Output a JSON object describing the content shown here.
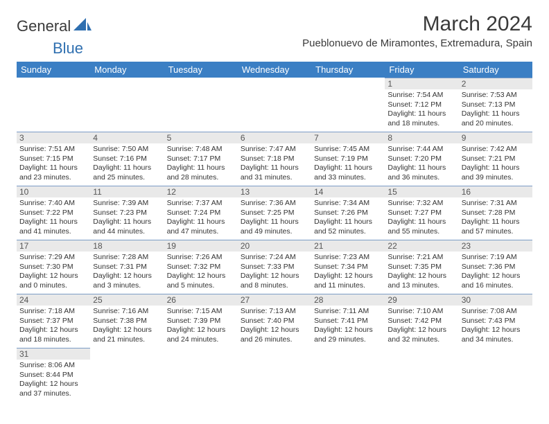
{
  "brand": {
    "part1": "General",
    "part2": "Blue",
    "color1": "#4a4a4a",
    "color2": "#2f6fb0"
  },
  "title": "March 2024",
  "location": "Pueblonuevo de Miramontes, Extremadura, Spain",
  "colors": {
    "header_bg": "#3b7fc4",
    "header_text": "#ffffff",
    "daynum_bg": "#e9e9e9",
    "cell_border": "#7a9cc6"
  },
  "day_headers": [
    "Sunday",
    "Monday",
    "Tuesday",
    "Wednesday",
    "Thursday",
    "Friday",
    "Saturday"
  ],
  "weeks": [
    [
      null,
      null,
      null,
      null,
      null,
      {
        "n": "1",
        "sr": "Sunrise: 7:54 AM",
        "ss": "Sunset: 7:12 PM",
        "d1": "Daylight: 11 hours",
        "d2": "and 18 minutes."
      },
      {
        "n": "2",
        "sr": "Sunrise: 7:53 AM",
        "ss": "Sunset: 7:13 PM",
        "d1": "Daylight: 11 hours",
        "d2": "and 20 minutes."
      }
    ],
    [
      {
        "n": "3",
        "sr": "Sunrise: 7:51 AM",
        "ss": "Sunset: 7:15 PM",
        "d1": "Daylight: 11 hours",
        "d2": "and 23 minutes."
      },
      {
        "n": "4",
        "sr": "Sunrise: 7:50 AM",
        "ss": "Sunset: 7:16 PM",
        "d1": "Daylight: 11 hours",
        "d2": "and 25 minutes."
      },
      {
        "n": "5",
        "sr": "Sunrise: 7:48 AM",
        "ss": "Sunset: 7:17 PM",
        "d1": "Daylight: 11 hours",
        "d2": "and 28 minutes."
      },
      {
        "n": "6",
        "sr": "Sunrise: 7:47 AM",
        "ss": "Sunset: 7:18 PM",
        "d1": "Daylight: 11 hours",
        "d2": "and 31 minutes."
      },
      {
        "n": "7",
        "sr": "Sunrise: 7:45 AM",
        "ss": "Sunset: 7:19 PM",
        "d1": "Daylight: 11 hours",
        "d2": "and 33 minutes."
      },
      {
        "n": "8",
        "sr": "Sunrise: 7:44 AM",
        "ss": "Sunset: 7:20 PM",
        "d1": "Daylight: 11 hours",
        "d2": "and 36 minutes."
      },
      {
        "n": "9",
        "sr": "Sunrise: 7:42 AM",
        "ss": "Sunset: 7:21 PM",
        "d1": "Daylight: 11 hours",
        "d2": "and 39 minutes."
      }
    ],
    [
      {
        "n": "10",
        "sr": "Sunrise: 7:40 AM",
        "ss": "Sunset: 7:22 PM",
        "d1": "Daylight: 11 hours",
        "d2": "and 41 minutes."
      },
      {
        "n": "11",
        "sr": "Sunrise: 7:39 AM",
        "ss": "Sunset: 7:23 PM",
        "d1": "Daylight: 11 hours",
        "d2": "and 44 minutes."
      },
      {
        "n": "12",
        "sr": "Sunrise: 7:37 AM",
        "ss": "Sunset: 7:24 PM",
        "d1": "Daylight: 11 hours",
        "d2": "and 47 minutes."
      },
      {
        "n": "13",
        "sr": "Sunrise: 7:36 AM",
        "ss": "Sunset: 7:25 PM",
        "d1": "Daylight: 11 hours",
        "d2": "and 49 minutes."
      },
      {
        "n": "14",
        "sr": "Sunrise: 7:34 AM",
        "ss": "Sunset: 7:26 PM",
        "d1": "Daylight: 11 hours",
        "d2": "and 52 minutes."
      },
      {
        "n": "15",
        "sr": "Sunrise: 7:32 AM",
        "ss": "Sunset: 7:27 PM",
        "d1": "Daylight: 11 hours",
        "d2": "and 55 minutes."
      },
      {
        "n": "16",
        "sr": "Sunrise: 7:31 AM",
        "ss": "Sunset: 7:28 PM",
        "d1": "Daylight: 11 hours",
        "d2": "and 57 minutes."
      }
    ],
    [
      {
        "n": "17",
        "sr": "Sunrise: 7:29 AM",
        "ss": "Sunset: 7:30 PM",
        "d1": "Daylight: 12 hours",
        "d2": "and 0 minutes."
      },
      {
        "n": "18",
        "sr": "Sunrise: 7:28 AM",
        "ss": "Sunset: 7:31 PM",
        "d1": "Daylight: 12 hours",
        "d2": "and 3 minutes."
      },
      {
        "n": "19",
        "sr": "Sunrise: 7:26 AM",
        "ss": "Sunset: 7:32 PM",
        "d1": "Daylight: 12 hours",
        "d2": "and 5 minutes."
      },
      {
        "n": "20",
        "sr": "Sunrise: 7:24 AM",
        "ss": "Sunset: 7:33 PM",
        "d1": "Daylight: 12 hours",
        "d2": "and 8 minutes."
      },
      {
        "n": "21",
        "sr": "Sunrise: 7:23 AM",
        "ss": "Sunset: 7:34 PM",
        "d1": "Daylight: 12 hours",
        "d2": "and 11 minutes."
      },
      {
        "n": "22",
        "sr": "Sunrise: 7:21 AM",
        "ss": "Sunset: 7:35 PM",
        "d1": "Daylight: 12 hours",
        "d2": "and 13 minutes."
      },
      {
        "n": "23",
        "sr": "Sunrise: 7:19 AM",
        "ss": "Sunset: 7:36 PM",
        "d1": "Daylight: 12 hours",
        "d2": "and 16 minutes."
      }
    ],
    [
      {
        "n": "24",
        "sr": "Sunrise: 7:18 AM",
        "ss": "Sunset: 7:37 PM",
        "d1": "Daylight: 12 hours",
        "d2": "and 18 minutes."
      },
      {
        "n": "25",
        "sr": "Sunrise: 7:16 AM",
        "ss": "Sunset: 7:38 PM",
        "d1": "Daylight: 12 hours",
        "d2": "and 21 minutes."
      },
      {
        "n": "26",
        "sr": "Sunrise: 7:15 AM",
        "ss": "Sunset: 7:39 PM",
        "d1": "Daylight: 12 hours",
        "d2": "and 24 minutes."
      },
      {
        "n": "27",
        "sr": "Sunrise: 7:13 AM",
        "ss": "Sunset: 7:40 PM",
        "d1": "Daylight: 12 hours",
        "d2": "and 26 minutes."
      },
      {
        "n": "28",
        "sr": "Sunrise: 7:11 AM",
        "ss": "Sunset: 7:41 PM",
        "d1": "Daylight: 12 hours",
        "d2": "and 29 minutes."
      },
      {
        "n": "29",
        "sr": "Sunrise: 7:10 AM",
        "ss": "Sunset: 7:42 PM",
        "d1": "Daylight: 12 hours",
        "d2": "and 32 minutes."
      },
      {
        "n": "30",
        "sr": "Sunrise: 7:08 AM",
        "ss": "Sunset: 7:43 PM",
        "d1": "Daylight: 12 hours",
        "d2": "and 34 minutes."
      }
    ],
    [
      {
        "n": "31",
        "sr": "Sunrise: 8:06 AM",
        "ss": "Sunset: 8:44 PM",
        "d1": "Daylight: 12 hours",
        "d2": "and 37 minutes."
      },
      null,
      null,
      null,
      null,
      null,
      null
    ]
  ]
}
